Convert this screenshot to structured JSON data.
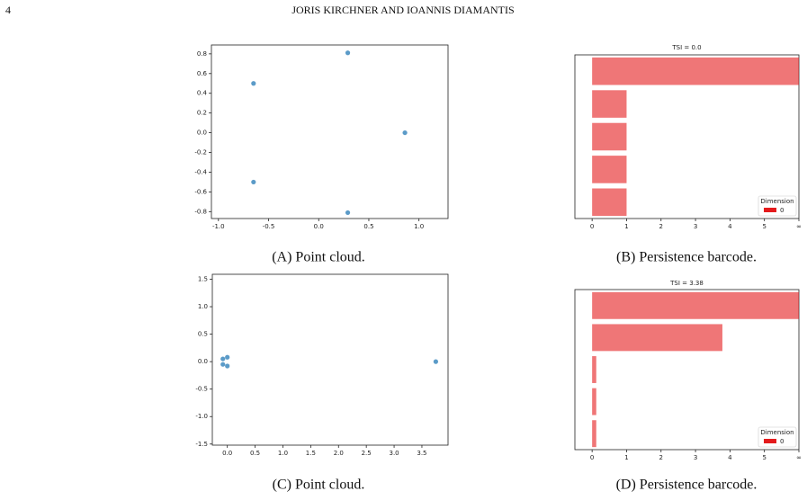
{
  "header": {
    "page_number": "4",
    "title": "JORIS KIRCHNER AND IOANNIS DIAMANTIS"
  },
  "chart_data": [
    {
      "type": "scatter",
      "caption": "(A) Point cloud.",
      "x": [
        -0.65,
        0.29,
        0.86,
        -0.65,
        0.29
      ],
      "values": [
        0.5,
        0.81,
        0.0,
        -0.5,
        -0.81
      ],
      "color": "#5b9bc8",
      "xlim": [
        -1.07,
        1.29
      ],
      "ylim": [
        -0.87,
        0.89
      ],
      "xticks": [
        {
          "value": -1,
          "label": "-1.0"
        },
        -0.5,
        {
          "value": 0,
          "label": "0.0"
        },
        0.5,
        {
          "value": 1,
          "label": "1.0"
        }
      ],
      "yticks": [
        0.8,
        0.6,
        0.4,
        0.2,
        {
          "value": 0,
          "label": "0.0"
        },
        -0.2,
        -0.4,
        -0.6,
        -0.8
      ]
    },
    {
      "type": "bar",
      "orientation": "horizontal",
      "title": "TSI = 0.0",
      "caption": "(B) Persistence barcode.",
      "series": [
        {
          "name": "0",
          "color": "#e41a1c",
          "values": [
            6,
            1,
            1,
            1,
            1
          ]
        }
      ],
      "xlim": [
        -0.5,
        6
      ],
      "xticks": [
        0,
        1,
        2,
        3,
        4,
        5,
        {
          "value": 6,
          "label": "∞"
        }
      ],
      "legend": {
        "title": "Dimension",
        "loc": "lower right"
      }
    },
    {
      "type": "scatter",
      "caption": "(C) Point cloud.",
      "x": [
        -0.08,
        0.0,
        -0.08,
        0.0,
        3.75
      ],
      "values": [
        0.05,
        0.08,
        -0.05,
        -0.08,
        0.0
      ],
      "color": "#5b9bc8",
      "xlim": [
        -0.27,
        3.97
      ],
      "ylim": [
        -1.52,
        1.59
      ],
      "xticks": [
        {
          "value": 0,
          "label": "0.0"
        },
        0.5,
        {
          "value": 1,
          "label": "1.0"
        },
        1.5,
        {
          "value": 2,
          "label": "2.0"
        },
        2.5,
        {
          "value": 3,
          "label": "3.0"
        },
        3.5
      ],
      "yticks": [
        1.5,
        {
          "value": 1,
          "label": "1.0"
        },
        0.5,
        {
          "value": 0,
          "label": "0.0"
        },
        -0.5,
        {
          "value": -1,
          "label": "-1.0"
        },
        -1.5
      ]
    },
    {
      "type": "bar",
      "orientation": "horizontal",
      "title": "TSI = 3.38",
      "caption": "(D) Persistence barcode.",
      "series": [
        {
          "name": "0",
          "color": "#e41a1c",
          "values": [
            6,
            3.78,
            0.12,
            0.12,
            0.12
          ]
        }
      ],
      "xlim": [
        -0.5,
        6
      ],
      "xticks": [
        0,
        1,
        2,
        3,
        4,
        5,
        {
          "value": 6,
          "label": "∞"
        }
      ],
      "legend": {
        "title": "Dimension",
        "loc": "lower right"
      }
    }
  ]
}
